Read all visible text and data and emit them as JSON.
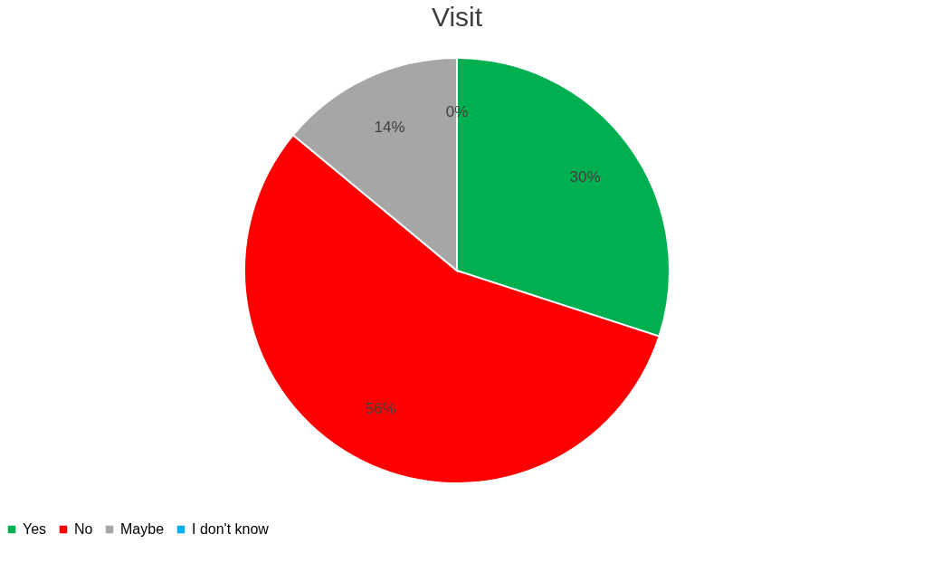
{
  "chart_data": {
    "type": "pie",
    "title": "Visit",
    "categories": [
      "Yes",
      "No",
      "Maybe",
      "I don't know"
    ],
    "values": [
      30,
      56,
      14,
      0
    ],
    "colors": [
      "#00b050",
      "#ff0000",
      "#a6a6a6",
      "#00b0f0"
    ],
    "value_labels": [
      "30%",
      "56%",
      "14%",
      "0%"
    ],
    "legend": "bottom"
  }
}
